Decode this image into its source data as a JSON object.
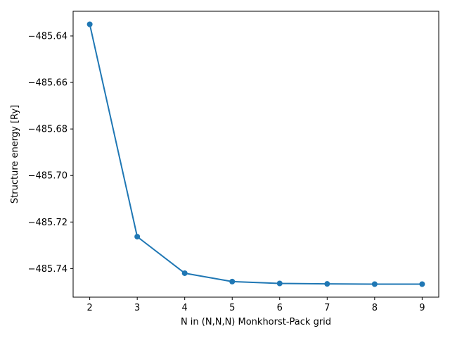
{
  "chart_data": {
    "type": "line",
    "title": "",
    "xlabel": "N in (N,N,N) Monkhorst-Pack grid",
    "ylabel": "Structure energy [Ry]",
    "x": [
      2,
      3,
      4,
      5,
      6,
      7,
      8,
      9
    ],
    "series": [
      {
        "values": [
          -485.635,
          -485.7263,
          -485.742,
          -485.7456,
          -485.7464,
          -485.7466,
          -485.7467,
          -485.7467
        ],
        "color": "#1f77b4",
        "marker": "circle"
      }
    ],
    "xlim": [
      1.65,
      9.35
    ],
    "ylim": [
      -485.7523,
      -485.6294
    ],
    "xticks": [
      2,
      3,
      4,
      5,
      6,
      7,
      8,
      9
    ],
    "xtick_labels": [
      "2",
      "3",
      "4",
      "5",
      "6",
      "7",
      "8",
      "9"
    ],
    "yticks": [
      -485.64,
      -485.66,
      -485.68,
      -485.7,
      -485.72,
      -485.74
    ],
    "ytick_labels": [
      "−485.64",
      "−485.66",
      "−485.68",
      "−485.70",
      "−485.72",
      "−485.74"
    ],
    "grid": false,
    "legend": false
  }
}
